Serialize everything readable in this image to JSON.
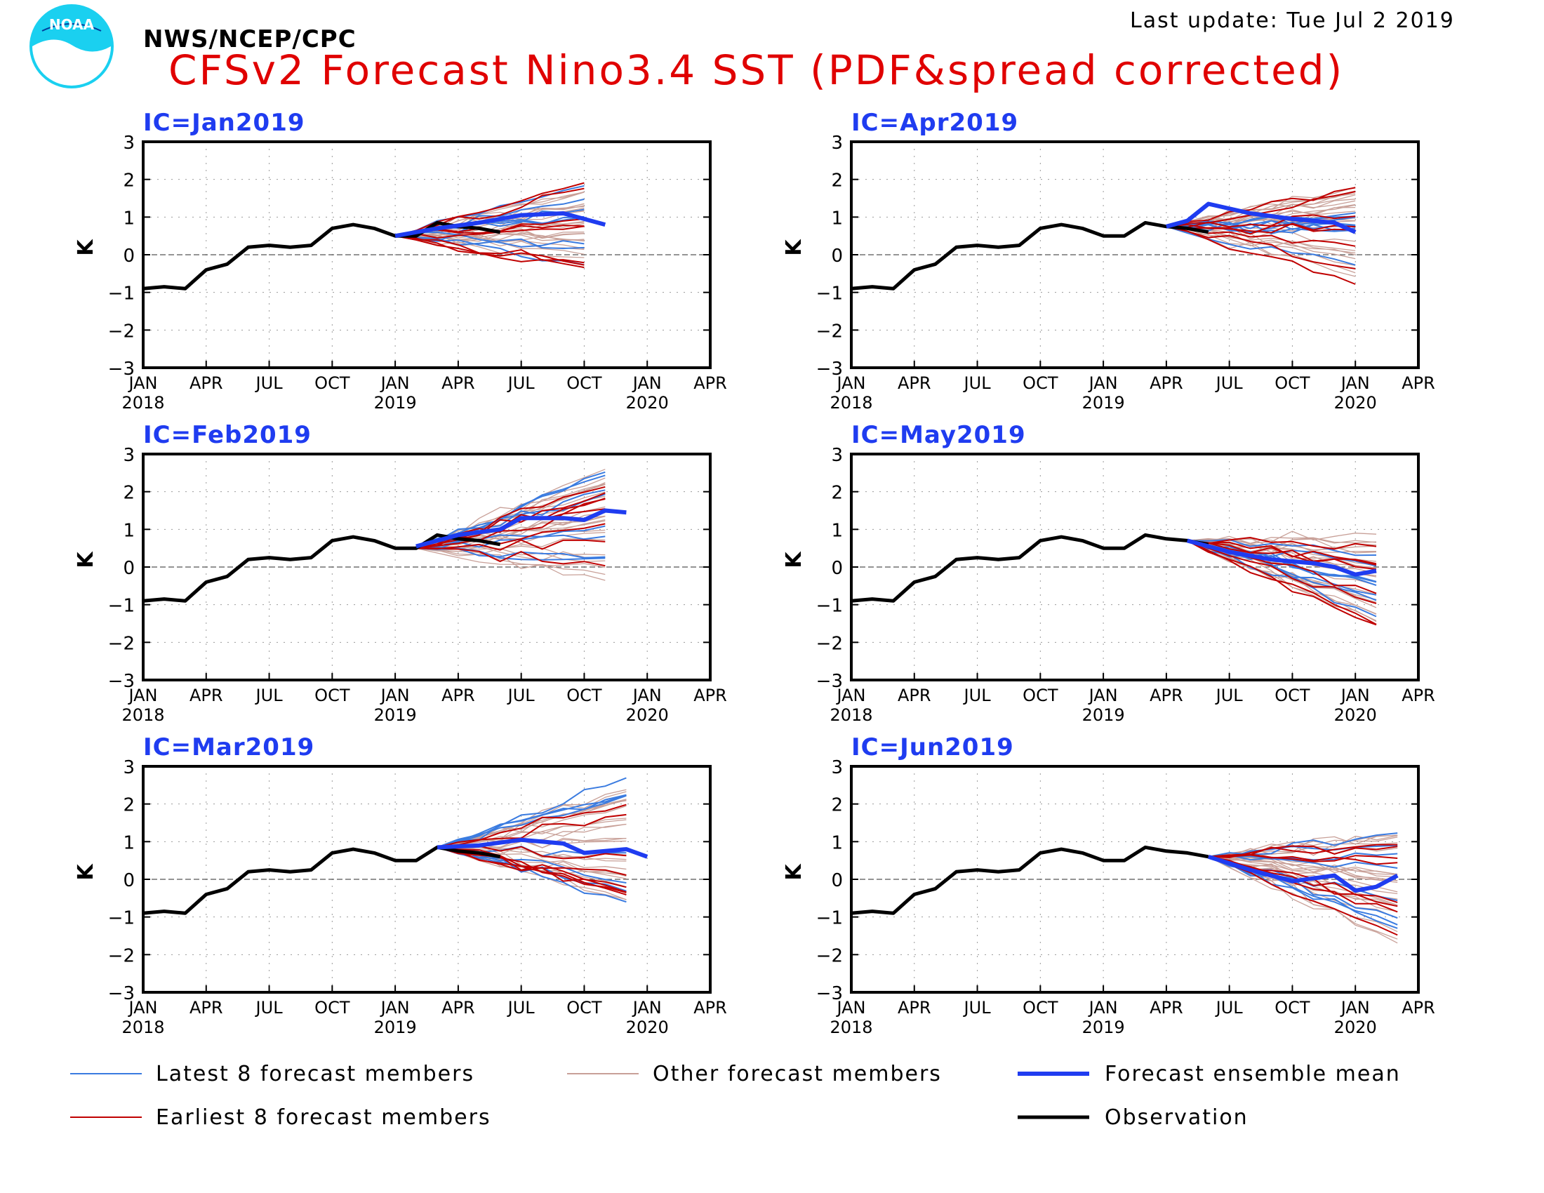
{
  "header": {
    "org": "NWS/NCEP/CPC",
    "last_update": "Last update: Tue Jul 2 2019",
    "title": "CFSv2 Forecast Nino3.4 SST (PDF&spread corrected)",
    "logo_text": "NOAA"
  },
  "colors": {
    "observation": "#000000",
    "ensemble_mean": "#1f3cf0",
    "latest_members": "#3a7be0",
    "earliest_members": "#c00000",
    "other_members": "#c8a098",
    "title": "#e00000",
    "ic_label": "#1f3cf0"
  },
  "legend": {
    "latest": "Latest 8 forecast members",
    "other": "Other forecast members",
    "mean": "Forecast ensemble mean",
    "earliest": "Earliest 8 forecast members",
    "observation": "Observation"
  },
  "chart_data": {
    "type": "line",
    "ylabel": "K",
    "ylim": [
      -3,
      3
    ],
    "yticks": [
      "3",
      "2",
      "1",
      "0",
      "−1",
      "−2",
      "−3"
    ],
    "xticks": [
      "JAN",
      "APR",
      "JUL",
      "OCT",
      "JAN",
      "APR",
      "JUL",
      "OCT",
      "JAN",
      "APR"
    ],
    "year_labels": [
      {
        "label": "2018",
        "tick": 0
      },
      {
        "label": "2019",
        "tick": 4
      },
      {
        "label": "2020",
        "tick": 8
      }
    ],
    "x_range_months": [
      "2018-01",
      "2020-04"
    ],
    "grid": "dotted",
    "panels": [
      {
        "ic": "IC=Jan2019",
        "observation": [
          -0.9,
          -0.85,
          -0.9,
          -0.4,
          -0.25,
          0.2,
          0.25,
          0.2,
          0.25,
          0.7,
          0.8,
          0.7,
          0.5,
          0.5,
          0.85,
          0.75,
          0.7,
          0.6
        ],
        "mean": [
          [
            2019.0,
            0.5
          ],
          [
            2019.167,
            0.7
          ],
          [
            2019.333,
            0.85
          ],
          [
            2019.5,
            1.05
          ],
          [
            2019.667,
            1.1
          ],
          [
            2019.75,
            0.95
          ],
          [
            2019.833,
            0.8
          ]
        ],
        "spread_start": 2019.0,
        "spread_end": 2019.75,
        "spread_high": 2.0,
        "spread_low": -0.4
      },
      {
        "ic": "IC=Apr2019",
        "observation": [
          -0.9,
          -0.85,
          -0.9,
          -0.4,
          -0.25,
          0.2,
          0.25,
          0.2,
          0.25,
          0.7,
          0.8,
          0.7,
          0.5,
          0.5,
          0.85,
          0.75,
          0.7,
          0.6
        ],
        "mean": [
          [
            2019.25,
            0.75
          ],
          [
            2019.333,
            0.9
          ],
          [
            2019.417,
            1.35
          ],
          [
            2019.583,
            1.1
          ],
          [
            2019.75,
            0.95
          ],
          [
            2019.917,
            0.85
          ],
          [
            2020.0,
            0.6
          ]
        ],
        "spread_start": 2019.25,
        "spread_end": 2020.0,
        "spread_high": 1.9,
        "spread_low": -0.85
      },
      {
        "ic": "IC=Feb2019",
        "observation": [
          -0.9,
          -0.85,
          -0.9,
          -0.4,
          -0.25,
          0.2,
          0.25,
          0.2,
          0.25,
          0.7,
          0.8,
          0.7,
          0.5,
          0.5,
          0.85,
          0.75,
          0.7,
          0.6
        ],
        "mean": [
          [
            2019.083,
            0.55
          ],
          [
            2019.25,
            0.85
          ],
          [
            2019.417,
            1.0
          ],
          [
            2019.5,
            1.3
          ],
          [
            2019.667,
            1.3
          ],
          [
            2019.75,
            1.25
          ],
          [
            2019.833,
            1.5
          ],
          [
            2019.917,
            1.45
          ]
        ],
        "spread_start": 2019.083,
        "spread_end": 2019.833,
        "spread_high": 2.7,
        "spread_low": -0.6
      },
      {
        "ic": "IC=May2019",
        "observation": [
          -0.9,
          -0.85,
          -0.9,
          -0.4,
          -0.25,
          0.2,
          0.25,
          0.2,
          0.25,
          0.7,
          0.8,
          0.7,
          0.5,
          0.5,
          0.85,
          0.75,
          0.7,
          0.6
        ],
        "mean": [
          [
            2019.333,
            0.7
          ],
          [
            2019.5,
            0.4
          ],
          [
            2019.667,
            0.2
          ],
          [
            2019.833,
            0.1
          ],
          [
            2019.917,
            0.0
          ],
          [
            2020.0,
            -0.2
          ],
          [
            2020.083,
            -0.1
          ]
        ],
        "spread_start": 2019.333,
        "spread_end": 2020.083,
        "spread_high": 0.9,
        "spread_low": -1.6
      },
      {
        "ic": "IC=Mar2019",
        "observation": [
          -0.9,
          -0.85,
          -0.9,
          -0.4,
          -0.25,
          0.2,
          0.25,
          0.2,
          0.25,
          0.7,
          0.8,
          0.7,
          0.5,
          0.5,
          0.85,
          0.75,
          0.7,
          0.6
        ],
        "mean": [
          [
            2019.167,
            0.85
          ],
          [
            2019.333,
            0.9
          ],
          [
            2019.5,
            1.05
          ],
          [
            2019.667,
            0.95
          ],
          [
            2019.75,
            0.7
          ],
          [
            2019.917,
            0.8
          ],
          [
            2020.0,
            0.6
          ]
        ],
        "spread_start": 2019.167,
        "spread_end": 2019.917,
        "spread_high": 2.7,
        "spread_low": -0.6
      },
      {
        "ic": "IC=Jun2019",
        "observation": [
          -0.9,
          -0.85,
          -0.9,
          -0.4,
          -0.25,
          0.2,
          0.25,
          0.2,
          0.25,
          0.7,
          0.8,
          0.7,
          0.5,
          0.5,
          0.85,
          0.75,
          0.7,
          0.6
        ],
        "mean": [
          [
            2019.417,
            0.6
          ],
          [
            2019.583,
            0.25
          ],
          [
            2019.75,
            -0.05
          ],
          [
            2019.917,
            0.1
          ],
          [
            2020.0,
            -0.3
          ],
          [
            2020.083,
            -0.2
          ],
          [
            2020.167,
            0.1
          ]
        ],
        "spread_start": 2019.417,
        "spread_end": 2020.167,
        "spread_high": 1.3,
        "spread_low": -1.7
      }
    ]
  }
}
